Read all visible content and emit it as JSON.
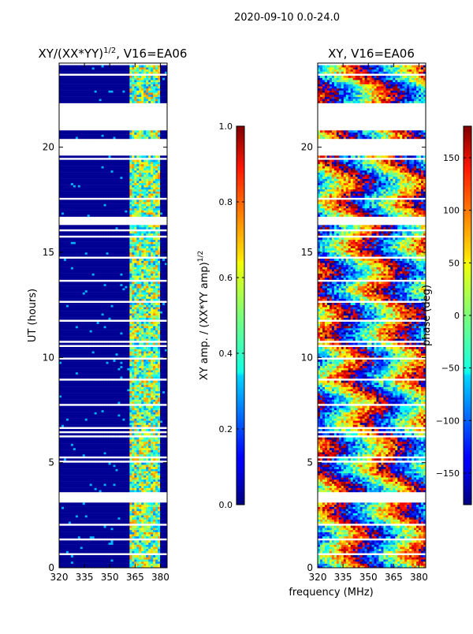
{
  "suptitle": "2020-09-10 0.0-24.0",
  "chart_data": [
    {
      "type": "heatmap",
      "title": "XY/(XX*YY)^1/2, V16=EA06",
      "title_main": "XY/(XX*YY)",
      "title_sup": "1/2",
      "title_tail": ", V16=EA06",
      "xlabel": "",
      "ylabel": "UT (hours)",
      "x_ticks": [
        "320",
        "335",
        "350",
        "365",
        "380"
      ],
      "x_tick_values": [
        320,
        335,
        350,
        365,
        380
      ],
      "xlim": [
        320,
        384
      ],
      "y_ticks": [
        "0",
        "5",
        "10",
        "15",
        "20"
      ],
      "y_tick_values": [
        0,
        5,
        10,
        15,
        20
      ],
      "ylim": [
        0,
        24
      ],
      "colorbar": {
        "label": "XY amp. / (XX*YY amp)^1/2",
        "label_main": "XY amp. / (XX*YY amp)",
        "label_sup": "1/2",
        "ticks": [
          "0.0",
          "0.2",
          "0.4",
          "0.6",
          "0.8",
          "1.0"
        ],
        "tick_values": [
          0,
          0.2,
          0.4,
          0.6,
          0.8,
          1.0
        ],
        "range": [
          0,
          1
        ]
      },
      "gaps_hours": [
        [
          3.1,
          3.4
        ],
        [
          19.7,
          20.3
        ],
        [
          20.8,
          22.1
        ]
      ]
    },
    {
      "type": "heatmap",
      "title": "XY, V16=EA06",
      "xlabel": "frequency (MHz)",
      "ylabel": "",
      "x_ticks": [
        "320",
        "335",
        "350",
        "365",
        "380"
      ],
      "x_tick_values": [
        320,
        335,
        350,
        365,
        380
      ],
      "xlim": [
        320,
        384
      ],
      "y_ticks": [
        "0",
        "5",
        "10",
        "15",
        "20"
      ],
      "y_tick_values": [
        0,
        5,
        10,
        15,
        20
      ],
      "ylim": [
        0,
        24
      ],
      "colorbar": {
        "label": "phase (deg)",
        "ticks": [
          "−150",
          "−100",
          "−50",
          "0",
          "50",
          "100",
          "150"
        ],
        "tick_values": [
          -150,
          -100,
          -50,
          0,
          50,
          100,
          150
        ],
        "range": [
          -180,
          180
        ]
      },
      "gaps_hours": [
        [
          3.1,
          3.4
        ],
        [
          19.7,
          20.3
        ],
        [
          20.8,
          22.1
        ]
      ]
    }
  ]
}
